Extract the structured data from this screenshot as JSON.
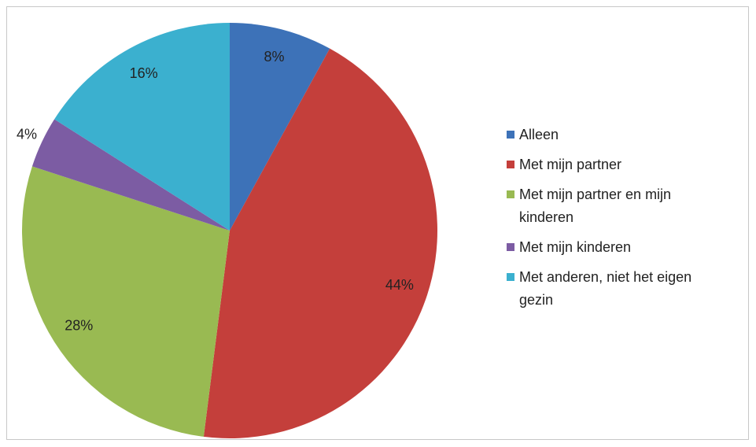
{
  "chart_data": {
    "type": "pie",
    "categories": [
      "Alleen",
      "Met mijn partner",
      "Met mijn partner en mijn kinderen",
      "Met mijn kinderen",
      "Met anderen, niet het eigen gezin"
    ],
    "values": [
      8,
      44,
      28,
      4,
      16
    ],
    "value_labels": [
      "8%",
      "44%",
      "28%",
      "4%",
      "16%"
    ],
    "colors": [
      "#3d72b8",
      "#c43f3b",
      "#99ba52",
      "#7c5ca3",
      "#3bb0cf"
    ],
    "legend": "right"
  }
}
